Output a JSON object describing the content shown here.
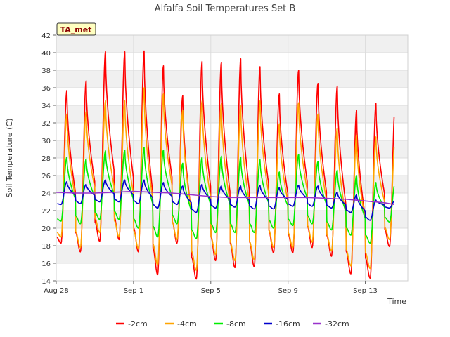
{
  "chart_data": {
    "type": "line",
    "title": "Alfalfa Soil Temperatures Set B",
    "xlabel": "Time",
    "ylabel": "Soil Temperature (C)",
    "ylim": [
      14,
      42
    ],
    "y_ticks": [
      14,
      16,
      18,
      20,
      22,
      24,
      26,
      28,
      30,
      32,
      34,
      36,
      38,
      40,
      42
    ],
    "xlim": [
      0,
      18.2
    ],
    "x_ticks": [
      {
        "pos": 0,
        "label": "Aug 28"
      },
      {
        "pos": 4,
        "label": "Sep 1"
      },
      {
        "pos": 8,
        "label": "Sep 5"
      },
      {
        "pos": 12,
        "label": "Sep 9"
      },
      {
        "pos": 16,
        "label": "Sep 13"
      }
    ],
    "grid": true,
    "legend_position": "bottom",
    "annotation": "TA_met",
    "x_unit": "days since Aug 28 (daily cycle; peaks near midday)",
    "series": [
      {
        "name": "-2cm",
        "color": "#ff0000",
        "daily_min": [
          18.3,
          17.3,
          18.5,
          18.7,
          17.3,
          14.7,
          18.3,
          14.2,
          16.3,
          15.5,
          15.6,
          17.2,
          17.2,
          17.8,
          16.8,
          14.8,
          14.3,
          17.9
        ],
        "daily_max": [
          35.7,
          36.8,
          40.1,
          40.1,
          40.2,
          38.5,
          35.1,
          39.0,
          38.9,
          39.3,
          38.4,
          35.3,
          38.0,
          36.5,
          36.2,
          33.4,
          34.2
        ]
      },
      {
        "name": "-4cm",
        "color": "#ffa500",
        "daily_min": [
          19.0,
          17.8,
          19.5,
          19.0,
          17.7,
          15.8,
          18.7,
          15.2,
          17.0,
          16.3,
          16.4,
          17.8,
          17.8,
          18.4,
          17.4,
          15.7,
          15.4,
          18.7
        ],
        "daily_max": [
          33.0,
          33.3,
          34.5,
          34.5,
          36.0,
          35.3,
          33.4,
          34.5,
          34.2,
          34.0,
          34.5,
          31.9,
          34.3,
          33.0,
          31.4,
          30.6,
          30.4
        ]
      },
      {
        "name": "-8cm",
        "color": "#00ee00",
        "daily_min": [
          20.8,
          20.5,
          21.0,
          21.0,
          20.0,
          19.0,
          20.5,
          18.8,
          19.5,
          19.5,
          19.5,
          20.0,
          20.3,
          20.5,
          19.8,
          19.2,
          18.3,
          20.7
        ],
        "daily_max": [
          28.1,
          27.9,
          28.8,
          28.9,
          29.2,
          28.9,
          27.4,
          28.1,
          28.2,
          28.1,
          27.8,
          26.4,
          28.4,
          27.6,
          26.6,
          26.0,
          25.2
        ]
      },
      {
        "name": "-16cm",
        "color": "#0000cc",
        "daily_min": [
          22.7,
          22.8,
          23.0,
          23.0,
          22.8,
          22.3,
          22.7,
          21.8,
          22.3,
          22.4,
          22.2,
          22.2,
          22.5,
          22.5,
          22.3,
          21.8,
          20.9,
          22.3
        ],
        "daily_max": [
          25.3,
          25.0,
          25.5,
          25.5,
          25.5,
          25.2,
          24.8,
          25.0,
          24.8,
          24.8,
          24.9,
          24.6,
          24.9,
          24.8,
          24.1,
          23.8,
          23.2
        ]
      },
      {
        "name": "-32cm",
        "color": "#9933cc",
        "points": [
          [
            0.0,
            24.1
          ],
          [
            1.0,
            24.0
          ],
          [
            2.0,
            24.0
          ],
          [
            3.0,
            24.1
          ],
          [
            4.0,
            24.2
          ],
          [
            5.0,
            24.1
          ],
          [
            6.0,
            24.0
          ],
          [
            7.0,
            23.8
          ],
          [
            8.0,
            23.6
          ],
          [
            9.0,
            23.5
          ],
          [
            10.0,
            23.5
          ],
          [
            11.0,
            23.5
          ],
          [
            12.0,
            23.5
          ],
          [
            13.0,
            23.5
          ],
          [
            14.0,
            23.4
          ],
          [
            15.0,
            23.3
          ],
          [
            16.0,
            23.1
          ],
          [
            17.0,
            22.9
          ],
          [
            17.5,
            22.7
          ]
        ]
      }
    ]
  }
}
